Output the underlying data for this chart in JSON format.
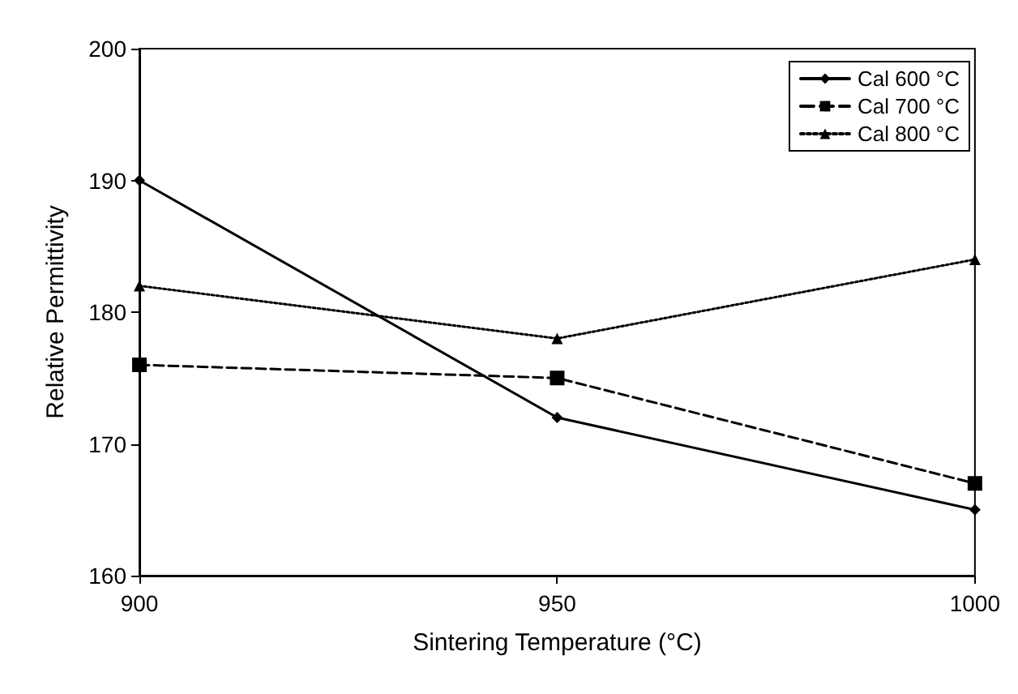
{
  "chart_data": {
    "type": "line",
    "xlabel": "Sintering Temperature (°C)",
    "ylabel": "Relative Permittivity",
    "x": [
      900,
      950,
      1000
    ],
    "xlim": [
      900,
      1000
    ],
    "xticks": [
      900,
      950,
      1000
    ],
    "ylim": [
      160,
      200
    ],
    "yticks": [
      160,
      170,
      180,
      190,
      200
    ],
    "legend": "top right",
    "series": [
      {
        "name": "Cal 600 °C",
        "color": "#000000",
        "values": [
          190,
          172,
          165
        ],
        "marker": "diamond",
        "line_style": "solid"
      },
      {
        "name": "Cal 700 °C",
        "color": "#000000",
        "values": [
          176,
          175,
          167
        ],
        "marker": "square",
        "line_style": "dashed"
      },
      {
        "name": "Cal 800 °C",
        "color": "#000000",
        "values": [
          182,
          178,
          184
        ],
        "marker": "triangle",
        "line_style": "dotted"
      }
    ]
  }
}
